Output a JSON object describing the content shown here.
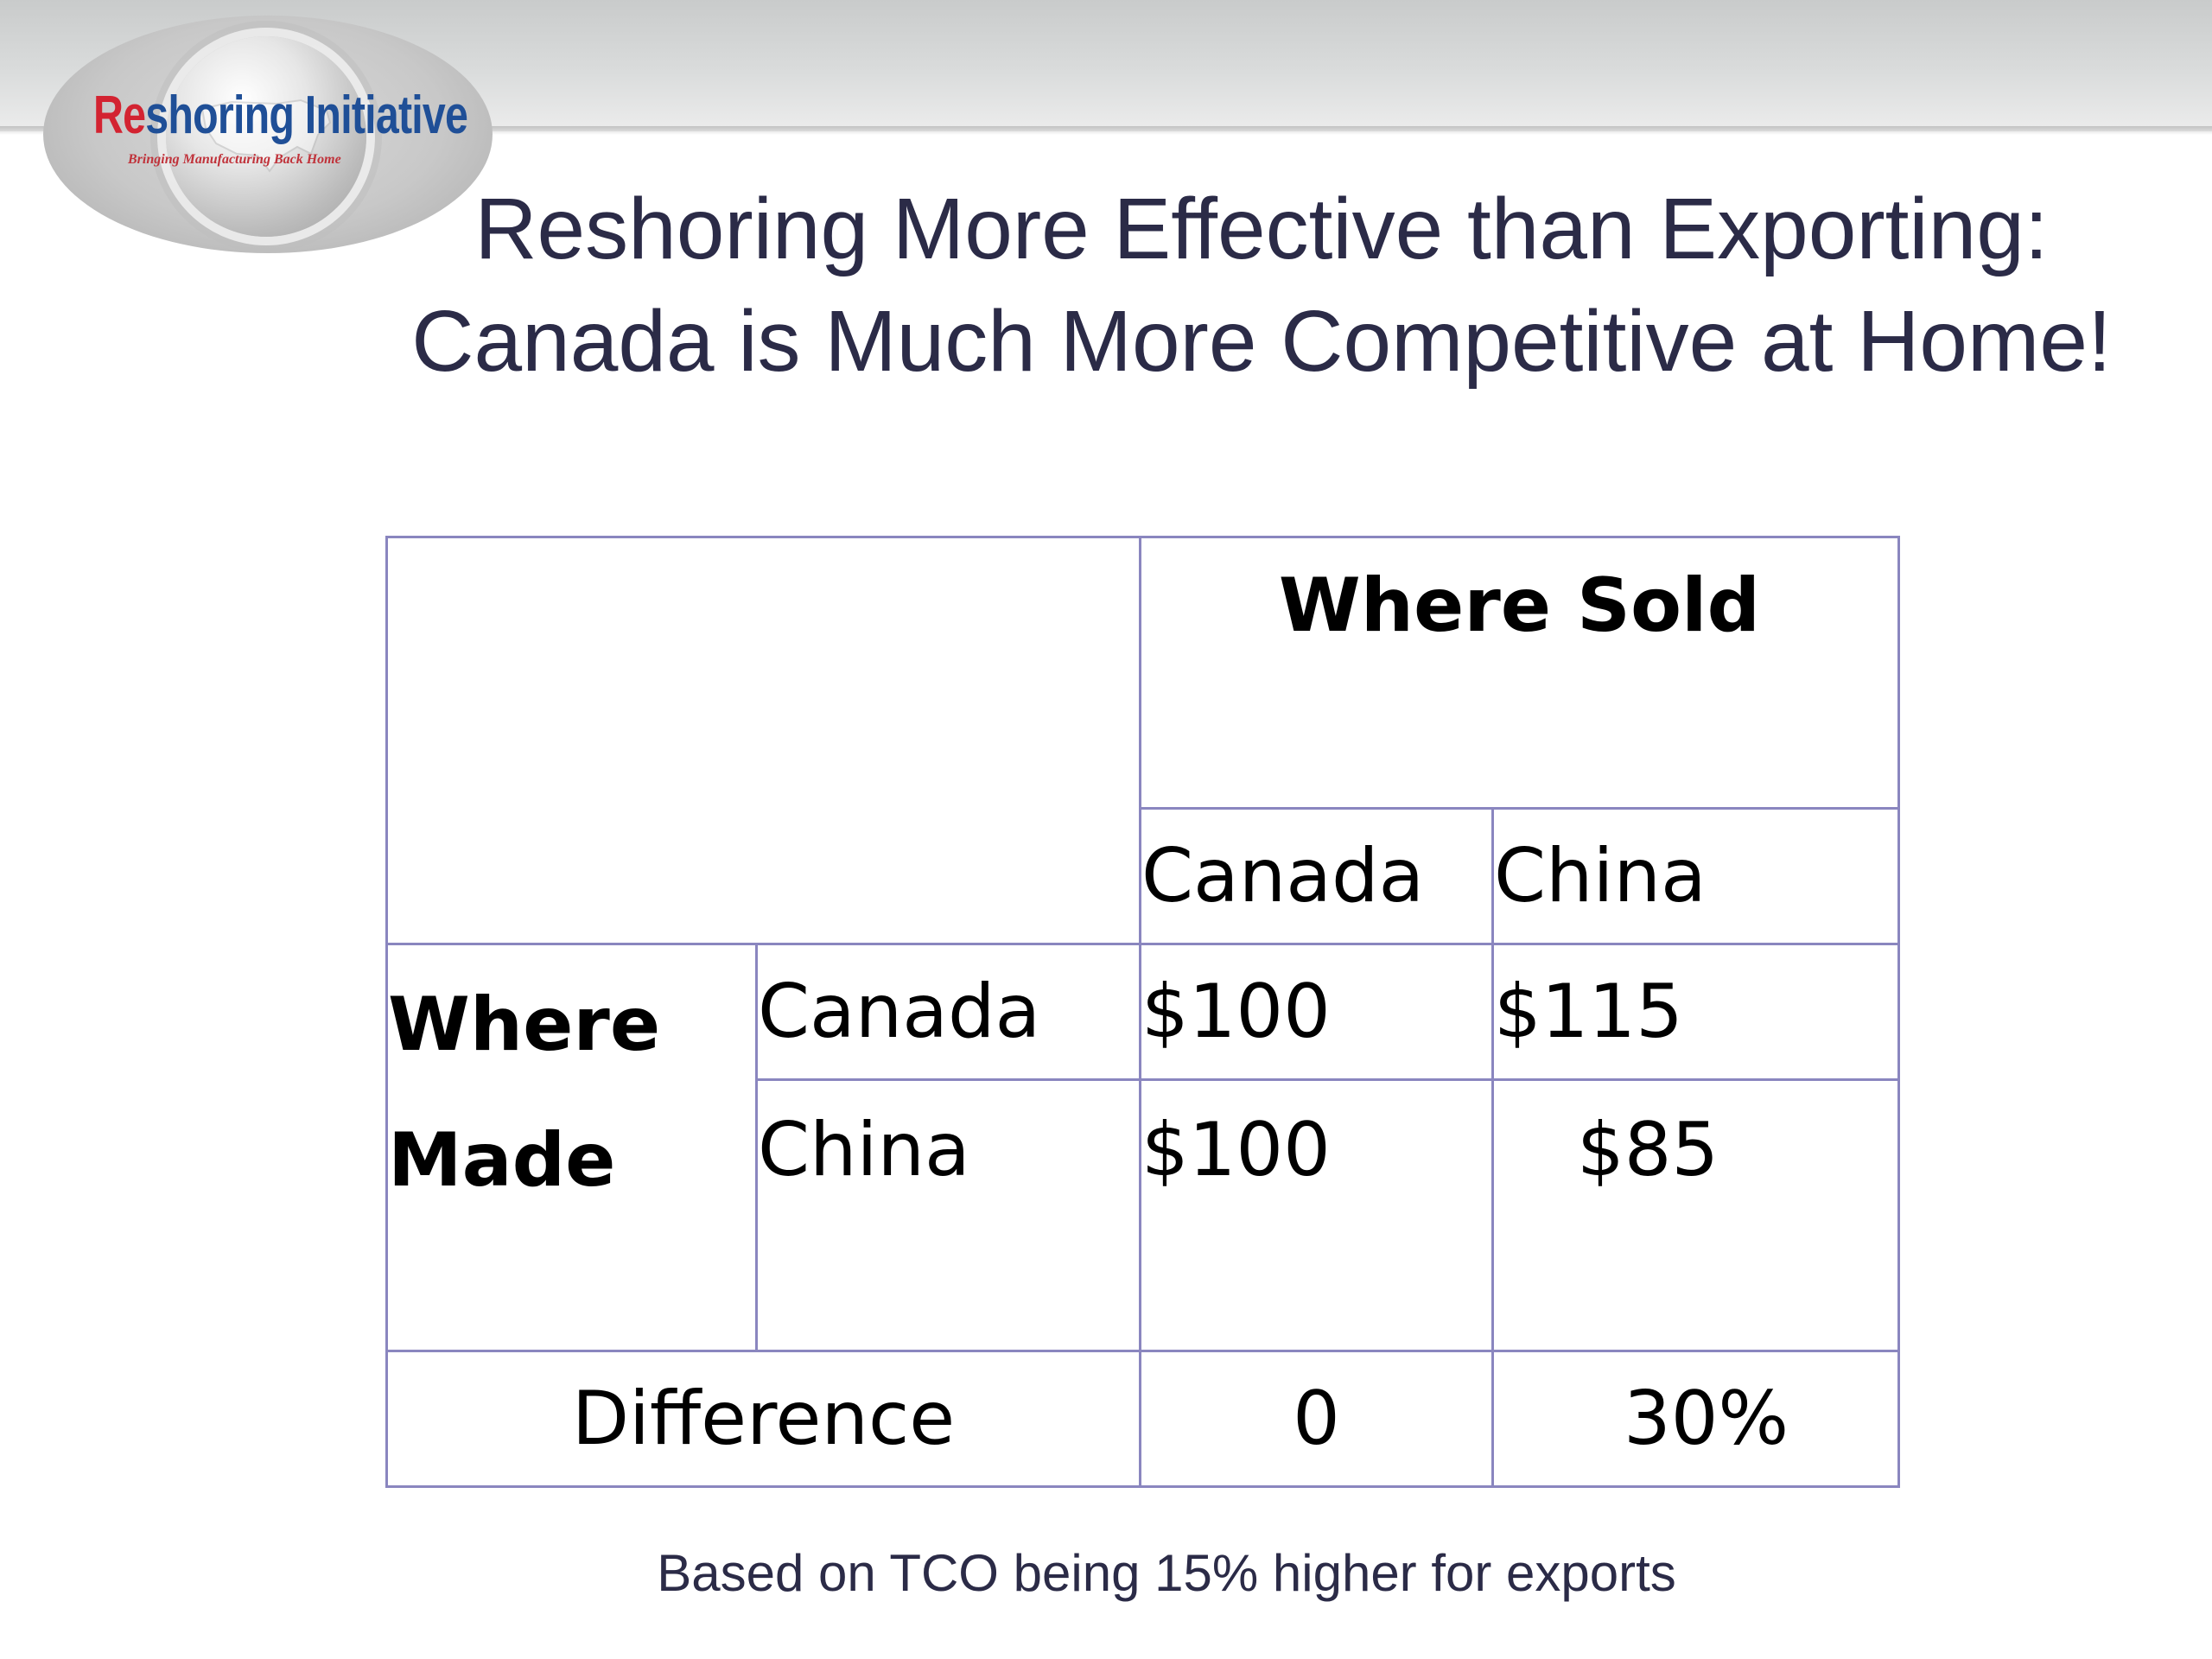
{
  "logo": {
    "wordmark_part1": "Re",
    "wordmark_part2": "shoring Initiative",
    "tagline": "Bringing Manufacturing Back Home",
    "colors": {
      "red": "#d32331",
      "blue": "#1f4f97"
    }
  },
  "title": {
    "line1": "Reshoring More Effective than Exporting:",
    "line2": "Canada is Much More Competitive at Home!"
  },
  "table": {
    "where_sold_header": "Where Sold",
    "sold_columns": [
      "Canada",
      "China"
    ],
    "where_made_header": "Where Made",
    "rows": [
      {
        "made_in": "Canada",
        "canada": "$100",
        "china": "$115"
      },
      {
        "made_in": "China",
        "canada": "$100",
        "china": "$85"
      }
    ],
    "difference": {
      "label": "Difference",
      "canada": "0",
      "china": "30%"
    },
    "border_color": "#8a86bf"
  },
  "caption": "Based on TCO being 15% higher for exports"
}
